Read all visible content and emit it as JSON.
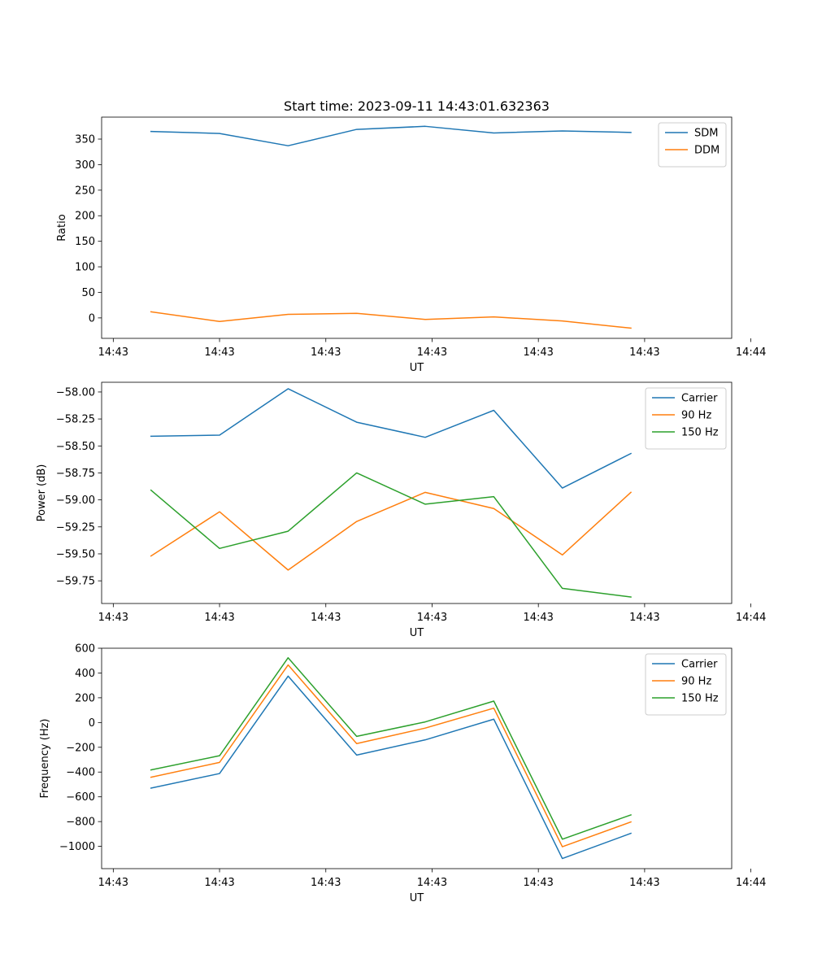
{
  "chart_data": [
    {
      "type": "line",
      "title": "Start time: 2023-09-11 14:43:01.632363",
      "xlabel": "UT",
      "ylabel": "Ratio",
      "x": [
        1,
        2,
        3,
        4,
        5,
        6,
        7,
        8
      ],
      "xlim": [
        0.28,
        9.47
      ],
      "xticks": [
        0.45,
        2.0,
        3.55,
        5.1,
        6.65,
        8.2,
        9.75
      ],
      "xtick_labels": [
        "14:43",
        "14:43",
        "14:43",
        "14:43",
        "14:43",
        "14:43",
        "14:44"
      ],
      "ylim": [
        -40,
        393
      ],
      "yticks": [
        0,
        50,
        100,
        150,
        200,
        250,
        300,
        350
      ],
      "ytick_labels": [
        "0",
        "50",
        "100",
        "150",
        "200",
        "250",
        "300",
        "350"
      ],
      "legend": "top-right",
      "series": [
        {
          "name": "SDM",
          "color": "#1f77b4",
          "values": [
            365,
            361,
            337,
            369,
            375,
            362,
            366,
            363
          ]
        },
        {
          "name": "DDM",
          "color": "#ff7f0e",
          "values": [
            12,
            -7,
            7,
            9,
            -3,
            2,
            -6,
            -20
          ]
        }
      ]
    },
    {
      "type": "line",
      "xlabel": "UT",
      "ylabel": "Power (dB)",
      "x": [
        1,
        2,
        3,
        4,
        5,
        6,
        7,
        8
      ],
      "xlim": [
        0.28,
        9.47
      ],
      "xticks": [
        0.45,
        2.0,
        3.55,
        5.1,
        6.65,
        8.2,
        9.75
      ],
      "xtick_labels": [
        "14:43",
        "14:43",
        "14:43",
        "14:43",
        "14:43",
        "14:43",
        "14:44"
      ],
      "ylim": [
        -59.96,
        -57.91
      ],
      "yticks": [
        -58.0,
        -58.25,
        -58.5,
        -58.75,
        -59.0,
        -59.25,
        -59.5,
        -59.75
      ],
      "ytick_labels": [
        "−58.00",
        "−58.25",
        "−58.50",
        "−58.75",
        "−59.00",
        "−59.25",
        "−59.50",
        "−59.75"
      ],
      "legend": "top-right",
      "series": [
        {
          "name": "Carrier",
          "color": "#1f77b4",
          "values": [
            -58.41,
            -58.4,
            -57.97,
            -58.28,
            -58.42,
            -58.17,
            -58.89,
            -58.57
          ]
        },
        {
          "name": "90 Hz",
          "color": "#ff7f0e",
          "values": [
            -59.52,
            -59.11,
            -59.65,
            -59.2,
            -58.93,
            -59.08,
            -59.51,
            -58.93
          ]
        },
        {
          "name": "150 Hz",
          "color": "#2ca02c",
          "values": [
            -58.91,
            -59.45,
            -59.29,
            -58.75,
            -59.04,
            -58.97,
            -59.82,
            -59.9
          ]
        }
      ]
    },
    {
      "type": "line",
      "xlabel": "UT",
      "ylabel": "Frequency (Hz)",
      "x": [
        1,
        2,
        3,
        4,
        5,
        6,
        7,
        8
      ],
      "xlim": [
        0.28,
        9.47
      ],
      "xticks": [
        0.45,
        2.0,
        3.55,
        5.1,
        6.65,
        8.2,
        9.75
      ],
      "xtick_labels": [
        "14:43",
        "14:43",
        "14:43",
        "14:43",
        "14:43",
        "14:43",
        "14:44"
      ],
      "ylim": [
        -1180,
        600
      ],
      "yticks": [
        600,
        400,
        200,
        0,
        -200,
        -400,
        -600,
        -800,
        -1000
      ],
      "ytick_labels": [
        "600",
        "400",
        "200",
        "0",
        "−200",
        "−400",
        "−600",
        "−800",
        "−1000"
      ],
      "legend": "top-right",
      "series": [
        {
          "name": "Carrier",
          "color": "#1f77b4",
          "values": [
            -530,
            -412,
            375,
            -263,
            -140,
            27,
            -1098,
            -895
          ]
        },
        {
          "name": "90 Hz",
          "color": "#ff7f0e",
          "values": [
            -442,
            -322,
            465,
            -170,
            -45,
            116,
            -1003,
            -803
          ]
        },
        {
          "name": "150 Hz",
          "color": "#2ca02c",
          "values": [
            -383,
            -268,
            523,
            -112,
            5,
            173,
            -942,
            -746
          ]
        }
      ]
    }
  ]
}
